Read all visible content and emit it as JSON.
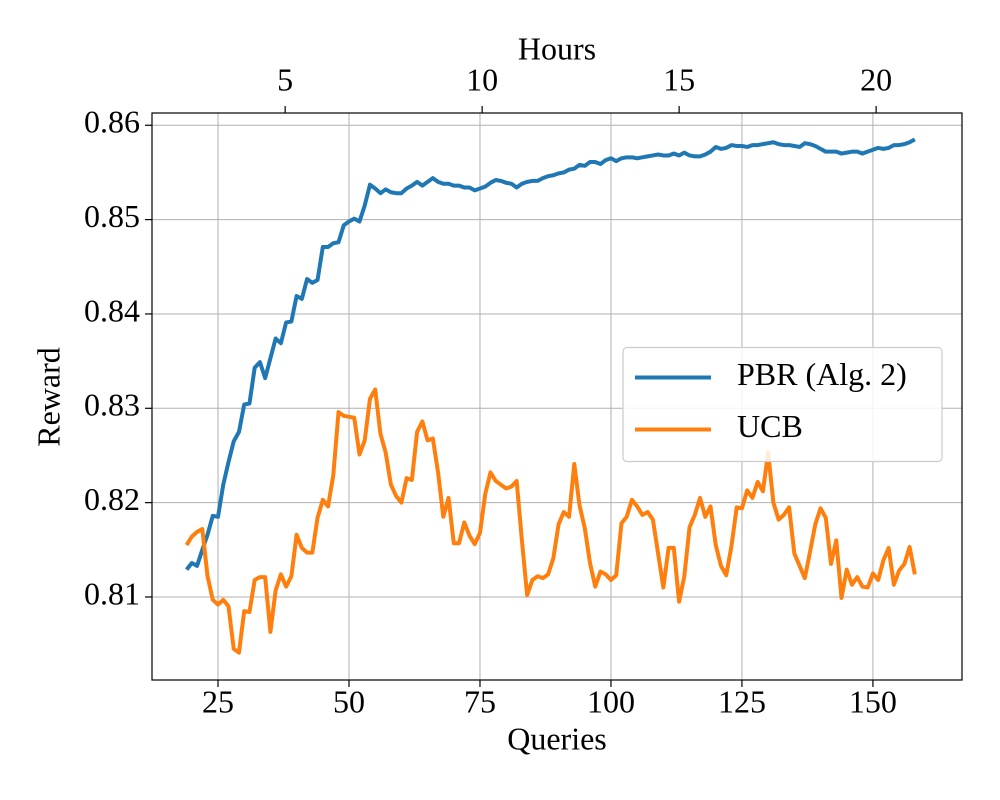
{
  "chart_data": {
    "type": "line",
    "xlabel": "Queries",
    "ylabel": "Reward",
    "x2label": "Hours",
    "x": [
      19,
      20,
      21,
      22,
      23,
      24,
      25,
      26,
      27,
      28,
      29,
      30,
      31,
      32,
      33,
      34,
      35,
      36,
      37,
      38,
      39,
      40,
      41,
      42,
      43,
      44,
      45,
      46,
      47,
      48,
      49,
      50,
      51,
      52,
      53,
      54,
      55,
      56,
      57,
      58,
      59,
      60,
      61,
      62,
      63,
      64,
      65,
      66,
      67,
      68,
      69,
      70,
      71,
      72,
      73,
      74,
      75,
      76,
      77,
      78,
      79,
      80,
      81,
      82,
      83,
      84,
      85,
      86,
      87,
      88,
      89,
      90,
      91,
      92,
      93,
      94,
      95,
      96,
      97,
      98,
      99,
      100,
      101,
      102,
      103,
      104,
      105,
      106,
      107,
      108,
      109,
      110,
      111,
      112,
      113,
      114,
      115,
      116,
      117,
      118,
      119,
      120,
      121,
      122,
      123,
      124,
      125,
      126,
      127,
      128,
      129,
      130,
      131,
      132,
      133,
      134,
      135,
      136,
      137,
      138,
      139,
      140,
      141,
      142,
      143,
      144,
      145,
      146,
      147,
      148,
      149,
      150,
      151,
      152,
      153,
      154,
      155,
      156,
      157,
      158
    ],
    "series": [
      {
        "name": "PBR (Alg. 2)",
        "color": "#1f77b4",
        "values": [
          0.8129,
          0.8136,
          0.8133,
          0.815,
          0.8166,
          0.8186,
          0.8185,
          0.8219,
          0.8243,
          0.8265,
          0.8275,
          0.8304,
          0.8305,
          0.8343,
          0.8349,
          0.8332,
          0.8353,
          0.8374,
          0.8369,
          0.8391,
          0.8392,
          0.8419,
          0.8416,
          0.8437,
          0.8433,
          0.8436,
          0.8471,
          0.8471,
          0.8475,
          0.8476,
          0.8494,
          0.8498,
          0.8501,
          0.8498,
          0.8515,
          0.8537,
          0.8533,
          0.8528,
          0.8532,
          0.8529,
          0.8528,
          0.8528,
          0.8533,
          0.8536,
          0.854,
          0.8536,
          0.854,
          0.8544,
          0.854,
          0.8538,
          0.8538,
          0.8536,
          0.8536,
          0.8534,
          0.8534,
          0.8531,
          0.8533,
          0.8535,
          0.8539,
          0.8542,
          0.8541,
          0.8539,
          0.8538,
          0.8534,
          0.8538,
          0.854,
          0.8541,
          0.8541,
          0.8544,
          0.8546,
          0.8547,
          0.8549,
          0.855,
          0.8553,
          0.8554,
          0.8558,
          0.8557,
          0.8561,
          0.8561,
          0.8559,
          0.8563,
          0.8565,
          0.8562,
          0.8565,
          0.8566,
          0.8566,
          0.8565,
          0.8566,
          0.8567,
          0.8568,
          0.8569,
          0.8568,
          0.8568,
          0.857,
          0.8568,
          0.8571,
          0.8568,
          0.8567,
          0.8567,
          0.8569,
          0.8572,
          0.8577,
          0.8575,
          0.8576,
          0.8579,
          0.8578,
          0.8578,
          0.8577,
          0.8579,
          0.8579,
          0.858,
          0.8581,
          0.8582,
          0.858,
          0.8579,
          0.8579,
          0.8578,
          0.8577,
          0.8581,
          0.858,
          0.8578,
          0.8575,
          0.8572,
          0.8572,
          0.8572,
          0.857,
          0.8571,
          0.8572,
          0.8572,
          0.857,
          0.8572,
          0.8574,
          0.8576,
          0.8575,
          0.8576,
          0.8579,
          0.8579,
          0.858,
          0.8582,
          0.8585
        ]
      },
      {
        "name": "UCB",
        "color": "#ff7f0e",
        "values": [
          0.8155,
          0.8164,
          0.8169,
          0.8172,
          0.8122,
          0.8097,
          0.8092,
          0.8097,
          0.809,
          0.8045,
          0.8041,
          0.8085,
          0.8084,
          0.8118,
          0.8121,
          0.8121,
          0.8063,
          0.8107,
          0.8124,
          0.8111,
          0.8122,
          0.8166,
          0.8152,
          0.8147,
          0.8147,
          0.8184,
          0.8203,
          0.8196,
          0.8229,
          0.8296,
          0.8292,
          0.8291,
          0.829,
          0.8251,
          0.8266,
          0.831,
          0.832,
          0.8273,
          0.8253,
          0.8219,
          0.8207,
          0.82,
          0.8226,
          0.8224,
          0.8275,
          0.8286,
          0.8266,
          0.8268,
          0.8232,
          0.8185,
          0.8205,
          0.8157,
          0.8157,
          0.8179,
          0.8165,
          0.8156,
          0.8168,
          0.8209,
          0.8232,
          0.8223,
          0.8219,
          0.8215,
          0.8217,
          0.8223,
          0.816,
          0.8102,
          0.8118,
          0.8122,
          0.812,
          0.8124,
          0.8141,
          0.8177,
          0.819,
          0.8185,
          0.8241,
          0.8197,
          0.8173,
          0.8136,
          0.8111,
          0.8127,
          0.8124,
          0.8118,
          0.8123,
          0.8178,
          0.8185,
          0.8203,
          0.8196,
          0.8187,
          0.819,
          0.8182,
          0.8146,
          0.811,
          0.8152,
          0.8152,
          0.8095,
          0.8122,
          0.8174,
          0.8187,
          0.8205,
          0.8185,
          0.8196,
          0.8155,
          0.8133,
          0.8123,
          0.8154,
          0.8195,
          0.8194,
          0.8213,
          0.8205,
          0.8222,
          0.8212,
          0.8253,
          0.82,
          0.8182,
          0.8187,
          0.8195,
          0.8146,
          0.8133,
          0.812,
          0.8148,
          0.8177,
          0.8194,
          0.8184,
          0.8135,
          0.816,
          0.8099,
          0.8129,
          0.8113,
          0.8121,
          0.8111,
          0.811,
          0.8125,
          0.8118,
          0.8139,
          0.8152,
          0.8113,
          0.8128,
          0.8135,
          0.8153,
          0.8124
        ]
      }
    ],
    "xlim": [
      12.4,
      167.0
    ],
    "xticks": [
      25,
      50,
      75,
      100,
      125,
      150
    ],
    "x2lim": [
      1.62,
      22.18
    ],
    "x2ticks": [
      5,
      10,
      15,
      20
    ],
    "ylim": [
      0.8012,
      0.8613
    ],
    "yticks": [
      0.81,
      0.82,
      0.83,
      0.84,
      0.85,
      0.86
    ],
    "grid": true,
    "legend": "center right"
  }
}
